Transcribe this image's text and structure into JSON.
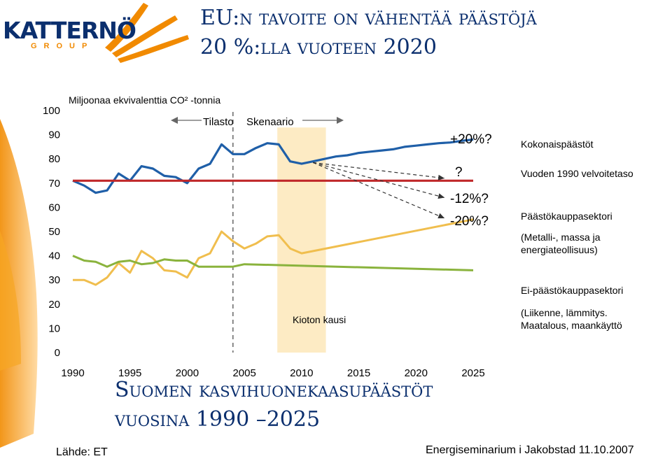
{
  "header": {
    "logo_name": "KATTERNÖ",
    "logo_sub": "GROUP",
    "title_line1": "EU:n tavoite on vähentää päästöjä",
    "title_line2": "20 %:lla vuoteen 2020"
  },
  "subtitle": {
    "line1": "Suomen kasvihuonekaasupäästöt",
    "line2": "vuosina 1990 –2025"
  },
  "footer": {
    "source": "Lähde: ET",
    "event": "Energiseminarium i Jakobstad 11.10.2007"
  },
  "colors": {
    "brand_blue": "#0b2f6e",
    "brand_orange": "#f18a00",
    "total_line": "#1f5fa8",
    "obligation_line": "#c0282a",
    "trading_line": "#8ab33d",
    "non_trading_line": "#f0be4e",
    "kyoto_band": "#fdebc4"
  },
  "chart_data": {
    "type": "line",
    "ylabel": "Miljoonaa ekvivalenttia CO² -tonnia",
    "ylim": [
      0,
      100
    ],
    "xlim": [
      1990,
      2025
    ],
    "yticks": [
      "100",
      "90",
      "80",
      "70",
      "60",
      "50",
      "40",
      "30",
      "20",
      "10",
      "0"
    ],
    "xticks": [
      "1990",
      "1995",
      "2000",
      "2005",
      "2010",
      "2015",
      "2020",
      "2025"
    ],
    "period_labels": [
      "Tilasto",
      "Skenaario"
    ],
    "kyoto_period_label": "Kioton kausi",
    "kyoto_period": [
      2008,
      2012
    ],
    "statistics_end_year": 2004,
    "series": [
      {
        "name": "Kokonaispäästöt",
        "x": [
          1990,
          1991,
          1992,
          1993,
          1994,
          1995,
          1996,
          1997,
          1998,
          1999,
          2000,
          2001,
          2002,
          2003,
          2004,
          2005,
          2006,
          2007,
          2008,
          2009,
          2010,
          2011,
          2012,
          2013,
          2014,
          2015,
          2016,
          2017,
          2018,
          2019,
          2020,
          2021,
          2022,
          2023,
          2024,
          2025
        ],
        "values": [
          71,
          69,
          66,
          67,
          74,
          71,
          77,
          76,
          73,
          72.5,
          70,
          76,
          78,
          86,
          82,
          82,
          84.5,
          86.5,
          86,
          79,
          78,
          79,
          80,
          81,
          81.5,
          82.5,
          83,
          83.5,
          84,
          85,
          85.5,
          86,
          86.5,
          86.8,
          87.5,
          88
        ]
      },
      {
        "name": "Vuoden 1990 velvoitetaso",
        "x": [
          1990,
          2025
        ],
        "values": [
          71,
          71
        ]
      },
      {
        "name": "Päästökauppasektori",
        "x": [
          1990,
          1991,
          1992,
          1993,
          1994,
          1995,
          1996,
          1997,
          1998,
          1999,
          2000,
          2001,
          2002,
          2003,
          2004,
          2005,
          2006,
          2007,
          2008,
          2009,
          2010,
          2025
        ],
        "values": [
          30,
          30,
          28,
          31,
          37,
          33,
          42,
          39,
          34,
          33.5,
          31,
          39,
          41,
          50,
          46,
          43,
          45,
          48,
          48.5,
          43,
          41,
          55
        ]
      },
      {
        "name": "Ei-päästökauppasektori",
        "x": [
          1990,
          1991,
          1992,
          1993,
          1994,
          1995,
          1996,
          1997,
          1998,
          1999,
          2000,
          2001,
          2002,
          2003,
          2004,
          2005,
          2025
        ],
        "values": [
          40,
          38,
          37.5,
          35.5,
          37.5,
          38,
          36.5,
          37,
          38.5,
          38,
          38,
          35.5,
          35.5,
          35.5,
          35.5,
          36.5,
          34
        ]
      }
    ],
    "scenario_labels": [
      "+20%?",
      "?",
      "-12%?",
      "-20%?"
    ],
    "legend": {
      "total": "Kokonaispäästöt",
      "obligation": "Vuoden 1990 velvoitetaso",
      "trading": "Päästökauppasektori",
      "trading_note_1": "(Metalli-, massa ja",
      "trading_note_2": "energiateollisuus)",
      "non_trading": "Ei-päästökauppasektori",
      "non_trading_note_1": "(Liikenne, lämmitys.",
      "non_trading_note_2": "Maatalous, maankäyttö"
    }
  }
}
